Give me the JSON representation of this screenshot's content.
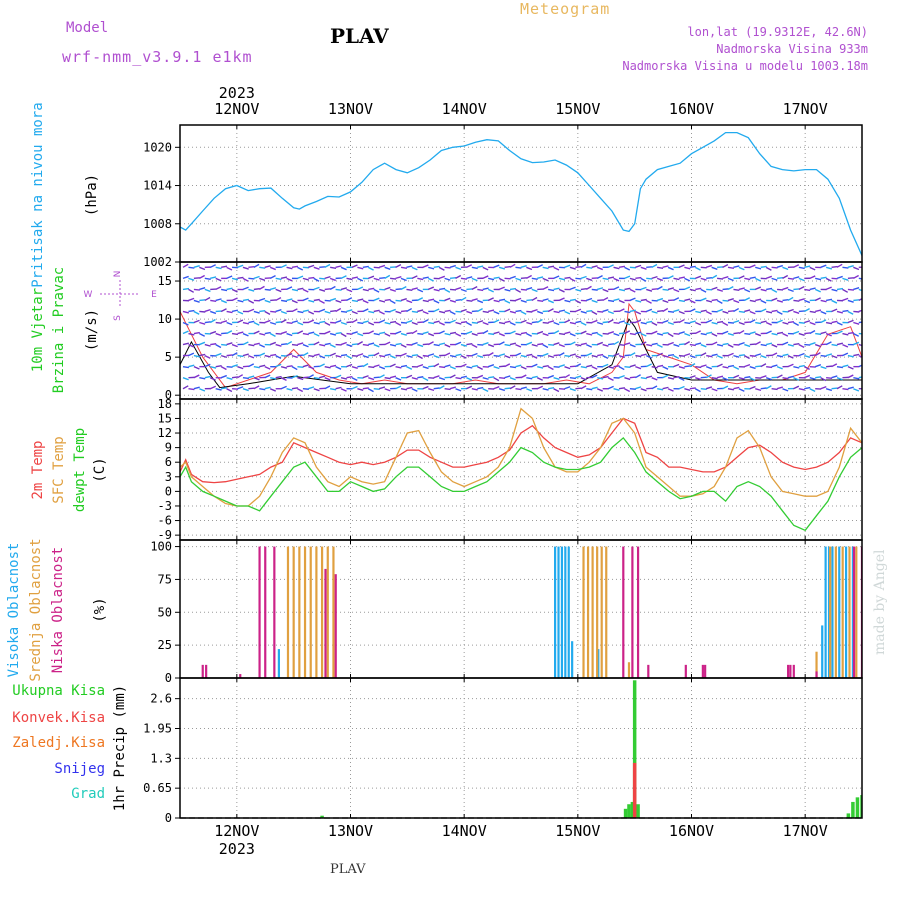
{
  "header": {
    "model_label": "Model",
    "model_name": "wrf-nmm_v3.9.1  e1km",
    "station": "PLAV",
    "product": "Meteogram",
    "coords": "lon,lat (19.9312E, 42.6N)",
    "elevation": "Nadmorska Visina 933m",
    "model_elevation": "Nadmorska Visina u modelu 1003.18m"
  },
  "footer": {
    "station": "PLAV",
    "credit": "made by Angel"
  },
  "chart_data": [
    {
      "panel": "pressure",
      "type": "line",
      "ylabel_colored": "Pritisak na nivou mora",
      "ylabel_unit": "(hPa)",
      "ylim": [
        1002,
        1023.5
      ],
      "yticks": [
        1002,
        1008,
        1014,
        1020
      ],
      "x_ticks": [
        "12NOV",
        "13NOV",
        "14NOV",
        "15NOV",
        "16NOV",
        "17NOV"
      ],
      "year_label": "2023",
      "x_range_days": [
        11.5,
        17.5
      ],
      "grid": true,
      "series": [
        {
          "color": "#22aaee",
          "x": [
            11.5,
            11.55,
            11.6,
            11.7,
            11.8,
            11.9,
            12.0,
            12.1,
            12.2,
            12.3,
            12.4,
            12.5,
            12.55,
            12.6,
            12.7,
            12.8,
            12.9,
            13.0,
            13.1,
            13.2,
            13.3,
            13.4,
            13.5,
            13.6,
            13.7,
            13.8,
            13.9,
            14.0,
            14.1,
            14.2,
            14.3,
            14.4,
            14.5,
            14.6,
            14.7,
            14.8,
            14.9,
            15.0,
            15.1,
            15.2,
            15.3,
            15.4,
            15.45,
            15.5,
            15.55,
            15.6,
            15.7,
            15.8,
            15.9,
            16.0,
            16.1,
            16.2,
            16.3,
            16.4,
            16.5,
            16.6,
            16.7,
            16.8,
            16.9,
            17.0,
            17.1,
            17.2,
            17.3,
            17.4,
            17.5
          ],
          "values": [
            1007.5,
            1007,
            1008,
            1010,
            1012,
            1013.5,
            1014,
            1013.2,
            1013.5,
            1013.6,
            1012,
            1010.5,
            1010.3,
            1010.8,
            1011.5,
            1012.3,
            1012.2,
            1013,
            1014.5,
            1016.5,
            1017.5,
            1016.5,
            1016,
            1016.8,
            1018,
            1019.5,
            1020,
            1020.2,
            1020.8,
            1021.2,
            1021,
            1019.5,
            1018.2,
            1017.6,
            1017.7,
            1018,
            1017.2,
            1016,
            1014,
            1012,
            1010,
            1007,
            1006.8,
            1008,
            1013.5,
            1015,
            1016.5,
            1017,
            1017.5,
            1019,
            1020,
            1021,
            1022.3,
            1022.3,
            1021.5,
            1019,
            1017,
            1016.5,
            1016.3,
            1016.5,
            1016.5,
            1015,
            1012,
            1007,
            1003
          ]
        }
      ]
    },
    {
      "panel": "wind",
      "type": "vector",
      "ylabel_colored_1": "10m Vjetar",
      "ylabel_colored_2": "Brzina i Pravac",
      "ylabel_unit": "(m/s)",
      "compass": {
        "n": "N",
        "s": "S",
        "w": "W",
        "e": "E"
      },
      "ylim": [
        -0.5,
        17.5
      ],
      "yticks": [
        0,
        5,
        10,
        15
      ],
      "series": [
        {
          "name": "speed",
          "color": "#ee4040",
          "x": [
            11.5,
            11.7,
            11.9,
            12.1,
            12.3,
            12.5,
            12.7,
            12.9,
            13.1,
            13.3,
            13.5,
            13.7,
            13.9,
            14.1,
            14.3,
            14.5,
            14.7,
            14.9,
            15.1,
            15.3,
            15.4,
            15.45,
            15.5,
            15.6,
            15.8,
            16.0,
            16.2,
            16.4,
            16.6,
            16.8,
            17.0,
            17.2,
            17.4,
            17.5
          ],
          "values": [
            11,
            5,
            1,
            2,
            3,
            6,
            3,
            2,
            1.5,
            2,
            1.5,
            1.5,
            1.5,
            2,
            1.5,
            1.5,
            1.5,
            2,
            1.5,
            3,
            5,
            12,
            11,
            6,
            5,
            4,
            2,
            1.5,
            2,
            2,
            3,
            8,
            9,
            5
          ]
        },
        {
          "name": "gust",
          "color": "#000000",
          "x": [
            11.5,
            11.6,
            11.75,
            11.85,
            12.1,
            12.3,
            12.5,
            13.0,
            14.0,
            15.0,
            15.3,
            15.45,
            15.5,
            15.7,
            16.0,
            16.5,
            17.0,
            17.5
          ],
          "values": [
            4,
            7,
            3,
            1,
            1.5,
            2,
            2.5,
            1.5,
            1.5,
            1.5,
            4,
            10,
            9,
            3,
            2,
            2,
            2,
            2
          ]
        }
      ]
    },
    {
      "panel": "temperature",
      "type": "line",
      "ylabel_colored_1": "2m Temp",
      "ylabel_colored_2": "SFC Temp",
      "ylabel_colored_3": "dewpt Temp",
      "ylabel_unit": "(C)",
      "ylim": [
        -10,
        19
      ],
      "yticks": [
        -9,
        -6,
        -3,
        0,
        3,
        6,
        9,
        12,
        15,
        18
      ],
      "series": [
        {
          "name": "2m Temp",
          "color": "#ee4444",
          "x": [
            11.5,
            11.55,
            11.6,
            11.7,
            11.8,
            11.9,
            12.0,
            12.1,
            12.2,
            12.3,
            12.4,
            12.5,
            12.6,
            12.7,
            12.8,
            12.9,
            13.0,
            13.1,
            13.2,
            13.3,
            13.4,
            13.5,
            13.6,
            13.7,
            13.8,
            13.9,
            14.0,
            14.1,
            14.2,
            14.3,
            14.4,
            14.5,
            14.6,
            14.7,
            14.8,
            14.9,
            15.0,
            15.1,
            15.2,
            15.3,
            15.4,
            15.5,
            15.6,
            15.7,
            15.8,
            15.9,
            16.0,
            16.1,
            16.2,
            16.3,
            16.4,
            16.5,
            16.6,
            16.7,
            16.8,
            16.9,
            17.0,
            17.1,
            17.2,
            17.3,
            17.4,
            17.5
          ],
          "values": [
            4,
            6.5,
            3.5,
            2,
            1.8,
            2,
            2.5,
            3,
            3.5,
            5,
            6,
            10,
            9,
            8,
            7,
            6,
            5.5,
            6,
            5.5,
            6,
            7,
            8.5,
            8.5,
            7,
            6,
            5,
            5,
            5.5,
            6,
            7,
            8.5,
            12,
            13.5,
            11,
            9,
            8,
            7,
            7.5,
            9,
            12,
            15,
            14,
            8,
            7,
            5,
            5,
            4.5,
            4,
            4,
            5,
            7,
            9,
            9.5,
            8,
            6,
            5,
            4.5,
            5,
            6,
            8,
            11,
            10
          ]
        },
        {
          "name": "SFC Temp",
          "color": "#e0a040",
          "x": [
            11.5,
            11.55,
            11.6,
            11.7,
            11.8,
            11.9,
            12.0,
            12.1,
            12.2,
            12.3,
            12.4,
            12.5,
            12.6,
            12.7,
            12.8,
            12.9,
            13.0,
            13.1,
            13.2,
            13.3,
            13.4,
            13.5,
            13.6,
            13.7,
            13.8,
            13.9,
            14.0,
            14.1,
            14.2,
            14.3,
            14.4,
            14.5,
            14.6,
            14.7,
            14.8,
            14.9,
            15.0,
            15.1,
            15.2,
            15.3,
            15.4,
            15.5,
            15.6,
            15.7,
            15.8,
            15.9,
            16.0,
            16.1,
            16.2,
            16.3,
            16.4,
            16.5,
            16.6,
            16.7,
            16.8,
            16.9,
            17.0,
            17.1,
            17.2,
            17.3,
            17.4,
            17.5
          ],
          "values": [
            5,
            6,
            3,
            1,
            -1,
            -2.5,
            -3,
            -3,
            -1,
            3,
            8,
            11,
            10,
            5,
            2,
            1,
            3,
            2,
            1.5,
            2,
            7,
            12,
            12.5,
            8,
            4,
            2,
            1,
            2,
            3,
            5,
            9,
            17,
            15,
            9,
            5,
            4,
            4,
            6,
            9,
            14,
            15,
            12,
            5,
            3,
            1,
            -1,
            -1,
            -0.5,
            1,
            5,
            11,
            12.5,
            9,
            3,
            0,
            -0.5,
            -1,
            -1,
            0,
            5,
            13,
            10
          ]
        },
        {
          "name": "dewpt Temp",
          "color": "#33cc33",
          "x": [
            11.5,
            11.55,
            11.6,
            11.7,
            11.8,
            11.9,
            12.0,
            12.1,
            12.2,
            12.3,
            12.4,
            12.5,
            12.6,
            12.7,
            12.8,
            12.9,
            13.0,
            13.1,
            13.2,
            13.3,
            13.4,
            13.5,
            13.6,
            13.7,
            13.8,
            13.9,
            14.0,
            14.1,
            14.2,
            14.3,
            14.4,
            14.5,
            14.6,
            14.7,
            14.8,
            14.9,
            15.0,
            15.1,
            15.2,
            15.3,
            15.4,
            15.5,
            15.6,
            15.7,
            15.8,
            15.9,
            16.0,
            16.1,
            16.2,
            16.3,
            16.4,
            16.5,
            16.6,
            16.7,
            16.8,
            16.9,
            17.0,
            17.1,
            17.2,
            17.3,
            17.4,
            17.5
          ],
          "values": [
            3,
            5,
            2,
            0,
            -1,
            -2,
            -3,
            -3,
            -4,
            -1,
            2,
            5,
            6,
            3,
            0,
            0,
            2,
            1,
            0,
            0.5,
            3,
            5,
            5,
            3,
            1,
            0,
            0,
            1,
            2,
            4,
            6,
            9,
            8,
            6,
            5,
            4.5,
            4.5,
            5,
            6,
            9,
            11,
            8,
            4,
            2,
            0,
            -1.5,
            -1,
            0,
            0,
            -2,
            1,
            2,
            1,
            -1,
            -4,
            -7,
            -8,
            -5,
            -2,
            3,
            7,
            9
          ]
        }
      ]
    },
    {
      "panel": "cloud",
      "type": "bar",
      "ylabel_colored_1": "Visoka Oblacnost",
      "ylabel_colored_2": "Srednja Oblacnost",
      "ylabel_colored_3": "Niska Oblacnost",
      "ylabel_unit": "(%)",
      "ylim": [
        0,
        105
      ],
      "yticks": [
        0,
        25,
        50,
        75,
        100
      ],
      "series": [
        {
          "name": "Visoka Oblacnost",
          "color": "#22aaee",
          "x": [
            12.37,
            14.8,
            14.83,
            14.86,
            14.89,
            14.92,
            14.95,
            15.18,
            17.15,
            17.18,
            17.21,
            17.24,
            17.3,
            17.36,
            17.42
          ],
          "values": [
            22,
            100,
            100,
            100,
            100,
            100,
            28,
            22,
            40,
            100,
            100,
            100,
            100,
            100,
            100
          ]
        },
        {
          "name": "Srednja Oblacnost",
          "color": "#e0a040",
          "x": [
            12.45,
            12.5,
            12.55,
            12.6,
            12.65,
            12.7,
            12.75,
            12.8,
            12.85,
            15.05,
            15.09,
            15.13,
            15.17,
            15.21,
            15.25,
            15.45,
            17.1,
            17.22,
            17.27,
            17.33,
            17.39,
            17.45
          ],
          "values": [
            100,
            100,
            100,
            100,
            100,
            100,
            100,
            100,
            100,
            100,
            100,
            100,
            100,
            100,
            100,
            12,
            20,
            100,
            100,
            100,
            100,
            100
          ]
        },
        {
          "name": "Niska Oblacnost",
          "color": "#cc2288",
          "x": [
            11.7,
            11.73,
            12.03,
            12.2,
            12.25,
            12.33,
            12.78,
            12.87,
            15.4,
            15.48,
            15.53,
            15.62,
            15.95,
            16.1,
            16.12,
            16.85,
            16.87,
            16.9,
            17.1,
            17.43,
            17.5
          ],
          "values": [
            10,
            10,
            3,
            100,
            100,
            100,
            83,
            79,
            100,
            100,
            100,
            10,
            10,
            10,
            10,
            10,
            10,
            10,
            5,
            100,
            100
          ]
        }
      ]
    },
    {
      "panel": "precip",
      "type": "bar",
      "ylabel_colored_1": "Ukupna Kisa",
      "ylabel_colored_2": "Konvek.Kisa",
      "ylabel_colored_3": "Zaledj.Kisa",
      "ylabel_colored_4": "Snijeg",
      "ylabel_colored_5": "Grad",
      "ylabel_unit": "1hr Precip (mm)",
      "ylim": [
        0,
        3.05
      ],
      "yticks": [
        "0",
        "0.65",
        "1.3",
        "1.95",
        "2.6"
      ],
      "year_label": "2023",
      "series": [
        {
          "name": "Ukupna Kisa",
          "color": "#33cc33",
          "x": [
            12.75,
            15.42,
            15.45,
            15.48,
            15.5,
            15.53,
            17.38,
            17.42,
            17.46,
            17.5
          ],
          "values": [
            0.05,
            0.2,
            0.3,
            0.35,
            3.0,
            0.3,
            0.1,
            0.35,
            0.45,
            0.5
          ]
        },
        {
          "name": "Konvek.Kisa",
          "color": "#ee4444",
          "x": [
            15.5
          ],
          "values": [
            1.2
          ]
        }
      ]
    }
  ]
}
